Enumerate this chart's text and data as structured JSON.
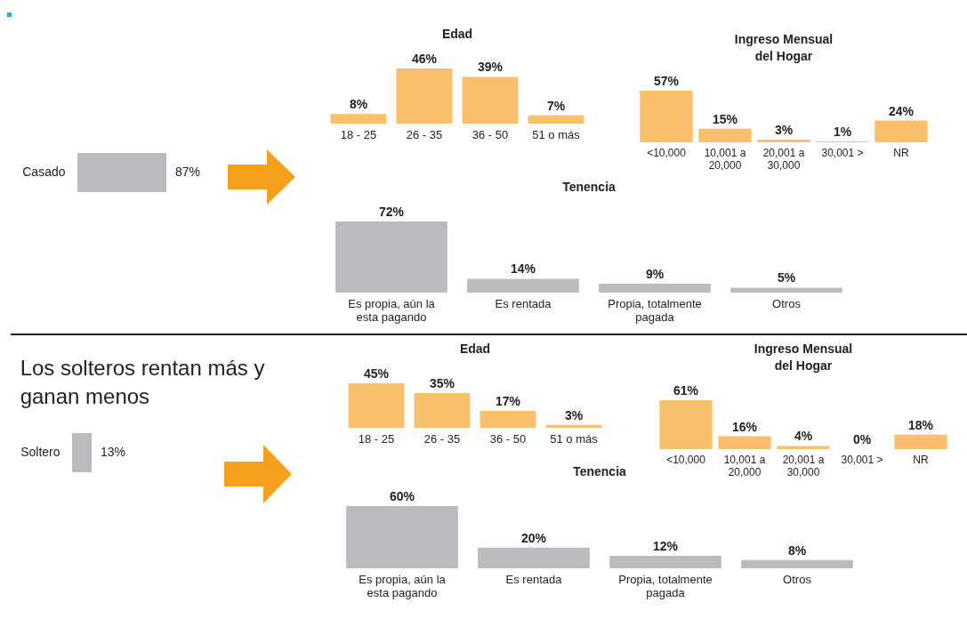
{
  "chart_data": [
    {
      "type": "bar",
      "orientation": "horizontal",
      "categories": [
        "Casado"
      ],
      "values": [
        87
      ],
      "value_labels": [
        "87%"
      ],
      "color": "#bcbcc0"
    },
    {
      "type": "bar",
      "title": "Edad",
      "categories": [
        "18 - 25",
        "26 - 35",
        "36 - 50",
        "51 o más"
      ],
      "values": [
        8,
        46,
        39,
        7
      ],
      "value_labels": [
        "8%",
        "46%",
        "39%",
        "7%"
      ],
      "color": "#fbc06e"
    },
    {
      "type": "bar",
      "title": "Ingreso Mensual del Hogar",
      "categories": [
        "<10,000",
        "10,001 a 20,000",
        "20,001 a 30,000",
        "30,001 >",
        "NR"
      ],
      "values": [
        57,
        15,
        3,
        1,
        24
      ],
      "value_labels": [
        "57%",
        "15%",
        "3%",
        "1%",
        "24%"
      ],
      "color": "#fbc06e"
    },
    {
      "type": "bar",
      "title": "Tenencia",
      "categories": [
        "Es propia, aún la esta pagando",
        "Es rentada",
        "Propia, totalmente pagada",
        "Otros"
      ],
      "values": [
        72,
        14,
        9,
        5
      ],
      "value_labels": [
        "72%",
        "14%",
        "9%",
        "5%"
      ],
      "color": "#bcbcc0"
    },
    {
      "type": "bar",
      "orientation": "horizontal",
      "title": "Los solteros rentan más y ganan menos",
      "categories": [
        "Soltero"
      ],
      "values": [
        13
      ],
      "value_labels": [
        "13%"
      ],
      "color": "#bcbcc0"
    },
    {
      "type": "bar",
      "title": "Edad",
      "categories": [
        "18 - 25",
        "26 - 35",
        "36 - 50",
        "51 o más"
      ],
      "values": [
        45,
        35,
        17,
        3
      ],
      "value_labels": [
        "45%",
        "35%",
        "17%",
        "3%"
      ],
      "color": "#fbc06e"
    },
    {
      "type": "bar",
      "title": "Ingreso Mensual del Hogar",
      "categories": [
        "<10,000",
        "10,001 a 20,000",
        "20,001 a 30,000",
        "30,001 >",
        "NR"
      ],
      "values": [
        61,
        16,
        4,
        0,
        18
      ],
      "value_labels": [
        "61%",
        "16%",
        "4%",
        "0%",
        "18%"
      ],
      "color": "#fbc06e"
    },
    {
      "type": "bar",
      "title": "Tenencia",
      "categories": [
        "Es propia, aún la esta pagando",
        "Es rentada",
        "Propia, totalmente pagada",
        "Otros"
      ],
      "values": [
        60,
        20,
        12,
        8
      ],
      "value_labels": [
        "60%",
        "20%",
        "12%",
        "8%"
      ],
      "color": "#bcbcc0"
    }
  ]
}
